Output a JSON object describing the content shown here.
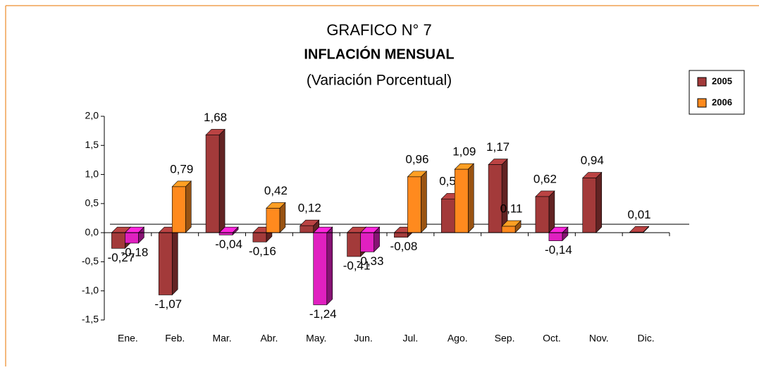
{
  "chart_data": {
    "type": "bar3d",
    "heading": "GRAFICO N°  7",
    "title": "INFLACIÓN MENSUAL",
    "subtitle": "(Variación Porcentual)",
    "categories": [
      "Ene.",
      "Feb.",
      "Mar.",
      "Abr.",
      "May.",
      "Jun.",
      "Jul.",
      "Ago.",
      "Sep.",
      "Oct.",
      "Nov.",
      "Dic."
    ],
    "series": [
      {
        "name": "2005",
        "color": "#a33a3a",
        "negative_color": "#a33a3a",
        "values": [
          -0.27,
          -1.07,
          1.68,
          -0.16,
          0.12,
          -0.41,
          -0.08,
          0.58,
          1.17,
          0.62,
          0.94,
          0.01
        ],
        "value_labels": [
          "-0,27",
          "-1,07",
          "1,68",
          "-0,16",
          "0,12",
          "-0,41",
          "-0,08",
          "0,58",
          "1,17",
          "0,62",
          "0,94",
          "0,01"
        ]
      },
      {
        "name": "2006",
        "color": "#ff8a1e",
        "negative_color": "#e020c0",
        "values": [
          -0.18,
          0.79,
          -0.04,
          0.42,
          -1.24,
          -0.33,
          0.96,
          1.09,
          0.11,
          -0.14,
          null,
          null
        ],
        "value_labels": [
          "-0,18",
          "0,79",
          "-0,04",
          "0,42",
          "-1,24",
          "-0,33",
          "0,96",
          "1,09",
          "0,11",
          "-0,14",
          null,
          null
        ]
      }
    ],
    "ylim": [
      -1.5,
      2.0
    ],
    "yticks": [
      {
        "value": -1.5,
        "label": "-1,5"
      },
      {
        "value": -1.0,
        "label": "-1,0"
      },
      {
        "value": -0.5,
        "label": "-0,5"
      },
      {
        "value": 0,
        "label": "0,0"
      },
      {
        "value": 0.5,
        "label": "0,5"
      },
      {
        "value": 1.0,
        "label": "1,0"
      },
      {
        "value": 1.5,
        "label": "1,5"
      },
      {
        "value": 2.0,
        "label": "2,0"
      }
    ],
    "legend": "top-right"
  }
}
